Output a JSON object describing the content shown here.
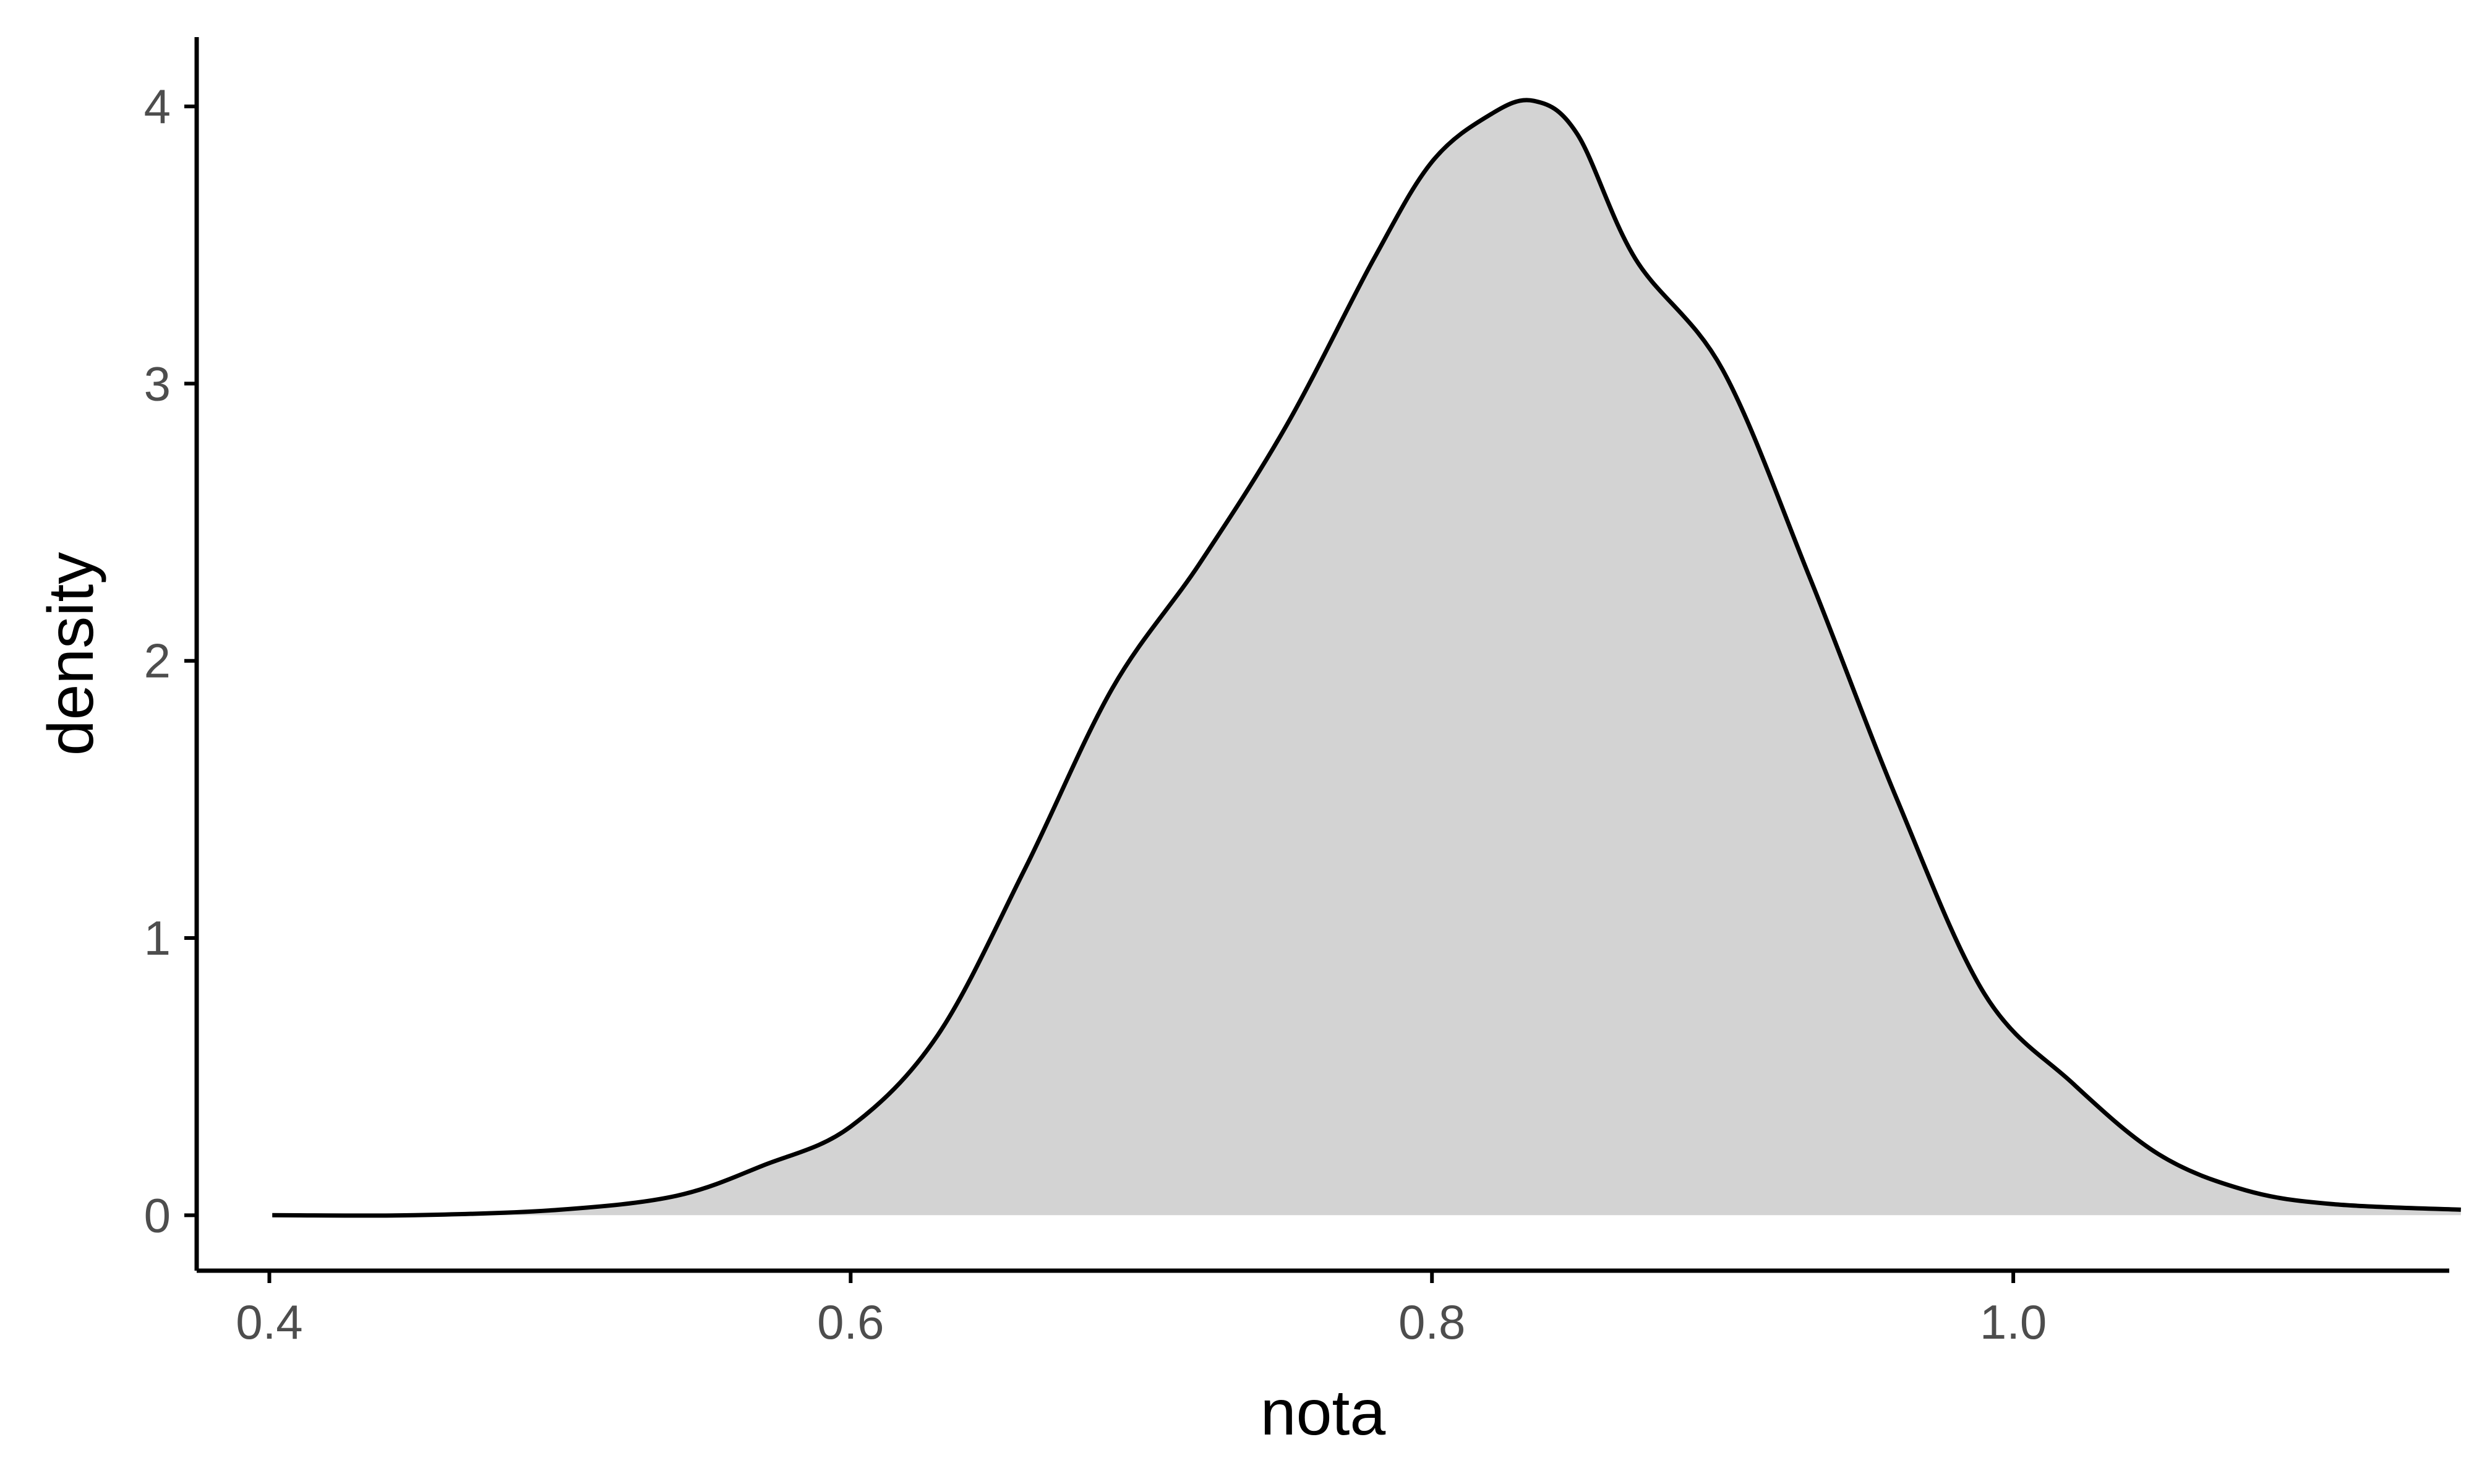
{
  "chart_data": {
    "type": "area",
    "title": "",
    "xlabel": "nota",
    "ylabel": "density",
    "xlim": [
      0.375,
      1.15
    ],
    "ylim": [
      -0.2,
      4.25
    ],
    "x_ticks": [
      0.4,
      0.6,
      0.8,
      1.0
    ],
    "x_tick_labels": [
      "0.4",
      "0.6",
      "0.8",
      "1.0"
    ],
    "y_ticks": [
      0,
      1,
      2,
      3,
      4
    ],
    "y_tick_labels": [
      "0",
      "1",
      "2",
      "3",
      "4"
    ],
    "grid": false,
    "legend": "none",
    "fill_color": "#d3d3d3",
    "line_color": "#000000",
    "series": [
      {
        "x": [
          0.401,
          0.45,
          0.5,
          0.54,
          0.57,
          0.6,
          0.63,
          0.66,
          0.69,
          0.72,
          0.75,
          0.78,
          0.8,
          0.82,
          0.835,
          0.85,
          0.87,
          0.9,
          0.93,
          0.96,
          0.99,
          1.02,
          1.05,
          1.08,
          1.11,
          1.154
        ],
        "y": [
          0.0,
          0.0,
          0.02,
          0.07,
          0.18,
          0.32,
          0.65,
          1.25,
          1.9,
          2.35,
          2.85,
          3.45,
          3.8,
          3.97,
          4.02,
          3.9,
          3.45,
          3.05,
          2.3,
          1.5,
          0.8,
          0.48,
          0.22,
          0.09,
          0.04,
          0.02
        ]
      }
    ]
  }
}
